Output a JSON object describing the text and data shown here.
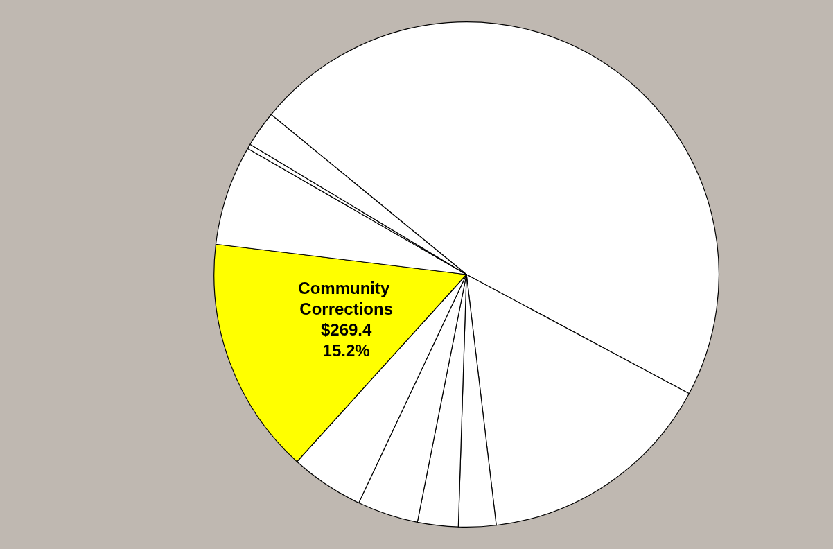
{
  "chart_data": {
    "type": "pie",
    "categories": [
      null,
      null,
      null,
      null,
      null,
      null,
      "Community Corrections",
      null,
      null,
      null
    ],
    "values": [
      46.9,
      15.3,
      2.4,
      2.6,
      3.9,
      4.7,
      15.2,
      6.4,
      0.3,
      2.3
    ],
    "colors": [
      "#ffffff",
      "#ffffff",
      "#ffffff",
      "#ffffff",
      "#ffffff",
      "#ffffff",
      "#ffff00",
      "#ffffff",
      "#ffffff",
      "#ffffff"
    ],
    "value_labels": [
      null,
      null,
      null,
      null,
      null,
      null,
      "$269.4\n15.2%",
      null,
      null,
      null
    ]
  }
}
